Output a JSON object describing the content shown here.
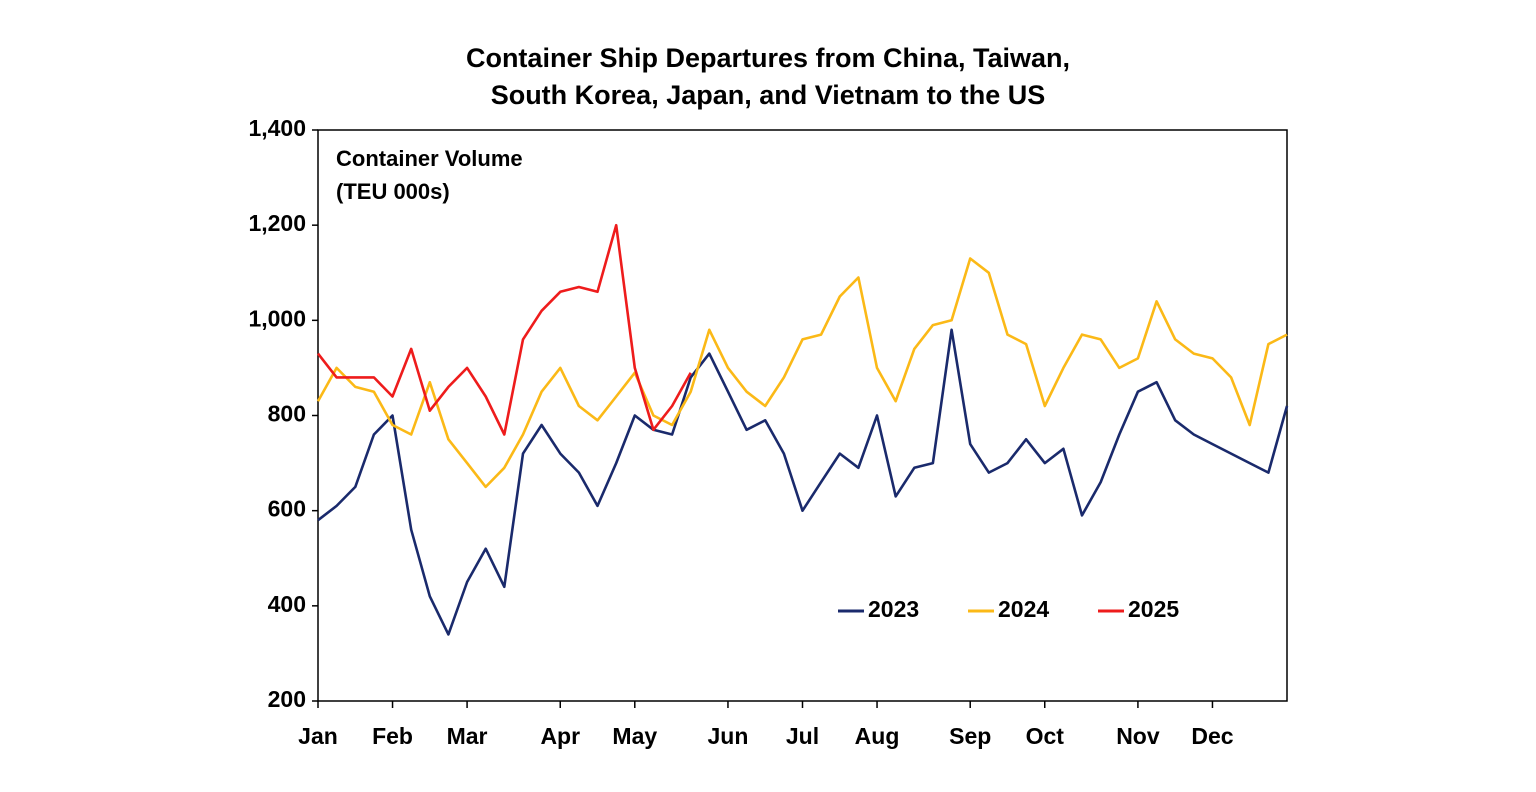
{
  "chart_data": {
    "type": "line",
    "title": [
      "Container Ship Departures from China, Taiwan,",
      "South Korea, Japan, and Vietnam to the US"
    ],
    "y_label": [
      "Container Volume",
      "(TEU 000s)"
    ],
    "categories": [
      "Jan",
      null,
      null,
      null,
      "Feb",
      null,
      null,
      null,
      "Mar",
      null,
      null,
      null,
      null,
      "Apr",
      null,
      null,
      null,
      "May",
      null,
      null,
      null,
      null,
      "Jun",
      null,
      null,
      null,
      "Jul",
      null,
      null,
      null,
      "Aug",
      null,
      null,
      null,
      null,
      "Sep",
      null,
      null,
      null,
      "Oct",
      null,
      null,
      null,
      null,
      "Nov",
      null,
      null,
      null,
      "Dec",
      null,
      null,
      null,
      null
    ],
    "series": [
      {
        "name": "2023",
        "color": "#1a2a6c",
        "values": [
          580,
          610,
          650,
          760,
          800,
          560,
          420,
          340,
          450,
          520,
          440,
          720,
          780,
          720,
          680,
          610,
          700,
          800,
          770,
          760,
          880,
          930,
          850,
          770,
          790,
          720,
          600,
          660,
          720,
          690,
          800,
          630,
          690,
          700,
          980,
          740,
          680,
          700,
          750,
          700,
          730,
          590,
          660,
          760,
          850,
          870,
          790,
          760,
          740,
          720,
          700,
          680,
          820
        ]
      },
      {
        "name": "2024",
        "color": "#fbb917",
        "values": [
          830,
          900,
          860,
          850,
          780,
          760,
          870,
          750,
          700,
          650,
          690,
          760,
          850,
          900,
          820,
          790,
          840,
          890,
          800,
          780,
          850,
          980,
          900,
          850,
          820,
          880,
          960,
          970,
          1050,
          1090,
          900,
          830,
          940,
          990,
          1000,
          1130,
          1100,
          970,
          950,
          820,
          900,
          970,
          960,
          900,
          920,
          1040,
          960,
          930,
          920,
          880,
          780,
          950,
          970
        ]
      },
      {
        "name": "2025",
        "color": "#ee1c1c",
        "values": [
          930,
          880,
          880,
          880,
          840,
          940,
          810,
          860,
          900,
          840,
          760,
          960,
          1020,
          1060,
          1070,
          1060,
          1200,
          900,
          770,
          820,
          890,
          null,
          null,
          null,
          null,
          null,
          null,
          null,
          null,
          null,
          null,
          null,
          null,
          null,
          null,
          null,
          null,
          null,
          null,
          null,
          null,
          null,
          null,
          null,
          null,
          null,
          null,
          null,
          null,
          null,
          null,
          null,
          null
        ]
      }
    ],
    "ylim": [
      200,
      1400
    ],
    "yticks": [
      200,
      400,
      600,
      800,
      {
        "value": 1000,
        "label": "1,000"
      },
      {
        "value": 1200,
        "label": "1,200"
      },
      {
        "value": 1400,
        "label": "1,400"
      }
    ]
  }
}
